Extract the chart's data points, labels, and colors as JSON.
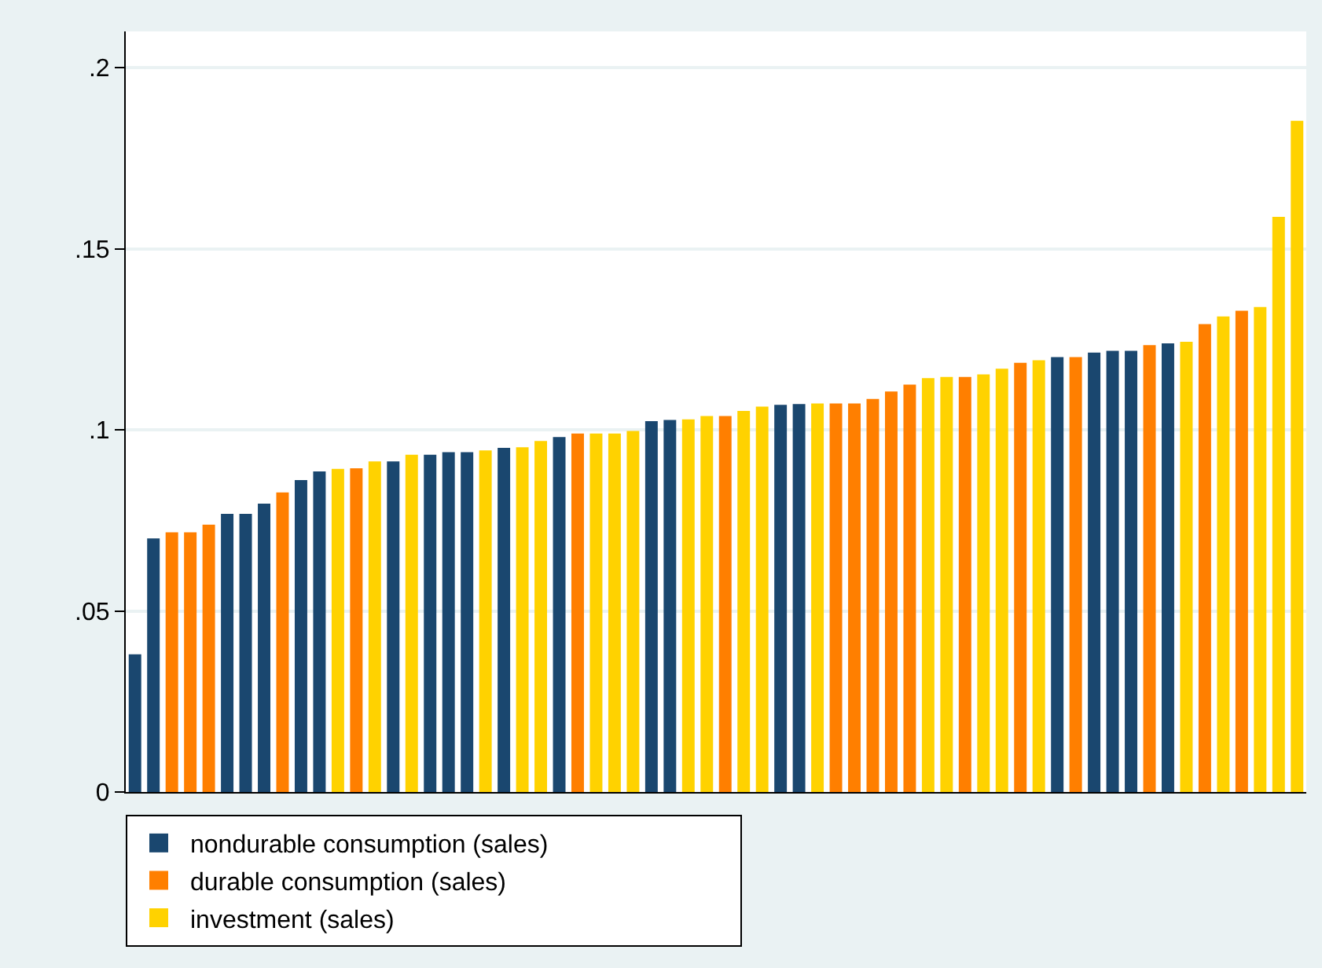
{
  "chart_data": {
    "type": "bar",
    "categories": [
      null,
      null,
      null,
      null,
      null,
      null,
      null,
      null,
      null,
      null,
      null,
      null,
      null,
      null,
      null,
      null,
      null,
      null,
      null,
      null,
      null,
      null,
      null,
      null,
      null,
      null,
      null,
      null,
      null,
      null,
      null,
      null,
      null,
      null,
      null,
      null,
      null,
      null,
      null,
      null,
      null,
      null,
      null,
      null,
      null,
      null,
      null,
      null,
      null,
      null,
      null,
      null,
      null,
      null,
      null,
      null,
      null,
      null,
      null,
      null,
      null,
      null,
      null,
      null
    ],
    "series": [
      {
        "name": "nondurable consumption (sales)",
        "color": "#1a476f",
        "values": [
          0.038,
          0.07,
          null,
          null,
          null,
          0.0768,
          0.0768,
          0.0796,
          null,
          0.0861,
          0.0885,
          null,
          null,
          null,
          0.0913,
          null,
          0.0931,
          0.0938,
          0.0938,
          null,
          0.095,
          null,
          null,
          0.098,
          null,
          null,
          null,
          null,
          0.1024,
          0.1027,
          null,
          null,
          null,
          null,
          null,
          0.1069,
          0.1071,
          null,
          null,
          null,
          null,
          null,
          null,
          null,
          null,
          null,
          null,
          null,
          null,
          null,
          0.1201,
          null,
          0.1213,
          0.1218,
          0.1218,
          null,
          0.1239,
          null,
          null,
          null,
          null,
          null,
          null,
          null
        ]
      },
      {
        "name": "durable consumption (sales)",
        "color": "#ff7f00",
        "values": [
          null,
          null,
          0.0717,
          0.0717,
          0.0738,
          null,
          null,
          null,
          0.0827,
          null,
          null,
          null,
          0.0894,
          null,
          null,
          null,
          null,
          null,
          null,
          null,
          null,
          null,
          null,
          null,
          0.099,
          null,
          null,
          null,
          null,
          null,
          null,
          null,
          0.1038,
          null,
          null,
          null,
          null,
          null,
          0.1073,
          0.1073,
          0.1085,
          0.1106,
          0.1125,
          null,
          null,
          0.1146,
          null,
          null,
          0.1185,
          null,
          null,
          0.1201,
          null,
          null,
          null,
          0.1234,
          null,
          null,
          0.1292,
          null,
          0.1329,
          null,
          null,
          null
        ]
      },
      {
        "name": "investment (sales)",
        "color": "#ffd200",
        "values": [
          null,
          null,
          null,
          null,
          null,
          null,
          null,
          null,
          null,
          null,
          null,
          0.0892,
          null,
          0.0913,
          null,
          0.0931,
          null,
          null,
          null,
          0.0943,
          null,
          0.0952,
          0.0969,
          null,
          null,
          0.099,
          0.099,
          0.0997,
          null,
          null,
          0.1029,
          0.1038,
          null,
          0.1052,
          0.1064,
          null,
          null,
          0.1073,
          null,
          null,
          null,
          null,
          null,
          0.1143,
          0.1146,
          null,
          0.1153,
          0.1169,
          null,
          0.1192,
          null,
          null,
          null,
          null,
          null,
          null,
          null,
          0.1243,
          null,
          0.1313,
          null,
          0.1339,
          0.1588,
          0.1853
        ]
      }
    ],
    "ylim": [
      0,
      0.21
    ],
    "yticks": [
      0,
      {
        "value": 0.05,
        "label": ".05"
      },
      {
        "value": 0.1,
        "label": ".1"
      },
      {
        "value": 0.15,
        "label": ".15"
      },
      {
        "value": 0.2,
        "label": ".2"
      }
    ],
    "grid": "y",
    "legend": "bottom"
  }
}
